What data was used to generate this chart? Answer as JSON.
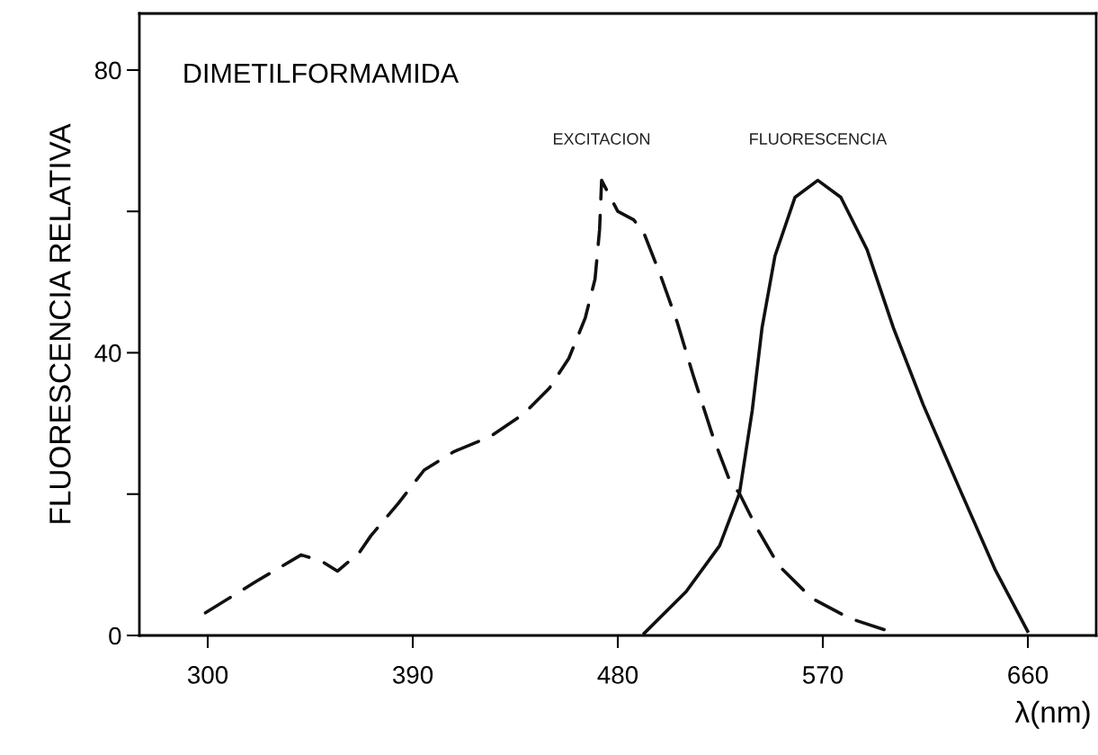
{
  "chart_data": {
    "type": "line",
    "title": "DIMETILFORMAMIDA",
    "xlabel": "λ(nm)",
    "ylabel": "FLUORESCENCIA RELATIVA",
    "xlim": [
      270,
      690
    ],
    "xticks": [
      300,
      390,
      480,
      570,
      660
    ],
    "ylim": [
      0,
      88
    ],
    "yticks": [
      0,
      {
        "value": 20,
        "label": null
      },
      40,
      {
        "value": 60,
        "label": null
      },
      80
    ],
    "grid": false,
    "legend": false,
    "marker": "none",
    "series": [
      {
        "name": "EXCITACION",
        "color": "#111111",
        "line_style": "dashed",
        "x": [
          299,
          321,
          341,
          350,
          357,
          366.5,
          371.6,
          383.7,
          395,
          408,
          423.8,
          438.5,
          450,
          458.5,
          465.7,
          470,
          472,
          472.9,
          480,
          487,
          491.5,
          498.8,
          506,
          513,
          521.8,
          529,
          533.4,
          540.5,
          550.6,
          565,
          582,
          600
        ],
        "values": [
          3.2,
          7.6,
          11.4,
          10.5,
          9.1,
          11.7,
          14.1,
          18.7,
          23.4,
          26,
          28.1,
          31.3,
          35,
          39.2,
          44.9,
          50.4,
          57.4,
          64.4,
          60,
          58.8,
          56.9,
          50.9,
          44.4,
          36.9,
          28.1,
          22,
          20.1,
          15.5,
          9.9,
          5.3,
          2.4,
          0.5
        ]
      },
      {
        "name": "FLUORESCENCIA",
        "color": "#111111",
        "line_style": "solid",
        "x": [
          491.6,
          510,
          524.7,
          533.4,
          539,
          543.3,
          549,
          557.8,
          567.8,
          577.9,
          589.4,
          601,
          614,
          629.7,
          645.5,
          659.9
        ],
        "values": [
          0.3,
          6.2,
          12.7,
          20.1,
          31.8,
          43.5,
          53.7,
          62,
          64.4,
          62,
          54.6,
          43.5,
          32.7,
          21,
          9.4,
          0.6
        ]
      }
    ]
  }
}
